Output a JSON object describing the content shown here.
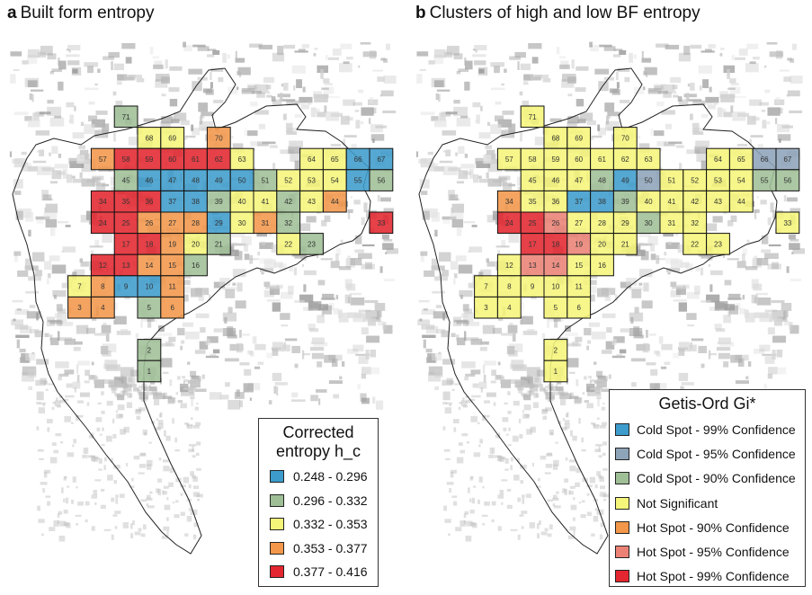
{
  "panels": [
    {
      "letter": "a",
      "title": "Built form entropy"
    },
    {
      "letter": "b",
      "title": "Clusters of high and low BF entropy"
    }
  ],
  "legend_a": {
    "title_line1": "Corrected",
    "title_line2": "entropy h_c",
    "items": [
      {
        "label": "0.248 - 0.296",
        "color": "#3d9ccc"
      },
      {
        "label": "0.296 - 0.332",
        "color": "#9fbf96"
      },
      {
        "label": "0.332 - 0.353",
        "color": "#f5f57a"
      },
      {
        "label": "0.353 - 0.377",
        "color": "#f3974a"
      },
      {
        "label": "0.377 - 0.416",
        "color": "#e3262f"
      }
    ]
  },
  "legend_b": {
    "title": "Getis-Ord Gi*",
    "items": [
      {
        "label": "Cold Spot - 99% Confidence",
        "color": "#3d9ccc"
      },
      {
        "label": "Cold Spot - 95% Confidence",
        "color": "#8ea4b9"
      },
      {
        "label": "Cold Spot - 90% Confidence",
        "color": "#9fbf96"
      },
      {
        "label": "Not Significant",
        "color": "#f5f57a"
      },
      {
        "label": "Hot Spot - 90% Confidence",
        "color": "#f3974a"
      },
      {
        "label": "Hot Spot - 95% Confidence",
        "color": "#eb8275"
      },
      {
        "label": "Hot Spot - 99% Confidence",
        "color": "#e3262f"
      }
    ]
  },
  "grid_cells": [
    {
      "id": "71",
      "a": "G",
      "b": "Y"
    },
    {
      "id": "68",
      "a": "Y",
      "b": "Y"
    },
    {
      "id": "69",
      "a": "Y",
      "b": "Y"
    },
    {
      "id": "70",
      "a": "O",
      "b": "Y"
    },
    {
      "id": "57",
      "a": "O",
      "b": "Y"
    },
    {
      "id": "58",
      "a": "R",
      "b": "Y"
    },
    {
      "id": "59",
      "a": "R",
      "b": "Y"
    },
    {
      "id": "60",
      "a": "R",
      "b": "Y"
    },
    {
      "id": "61",
      "a": "R",
      "b": "Y"
    },
    {
      "id": "62",
      "a": "R",
      "b": "Y"
    },
    {
      "id": "63",
      "a": "Y",
      "b": "Y"
    },
    {
      "id": "64",
      "a": "Y",
      "b": "Y"
    },
    {
      "id": "65",
      "a": "Y",
      "b": "Y"
    },
    {
      "id": "66",
      "a": "B",
      "b": "S"
    },
    {
      "id": "67",
      "a": "B",
      "b": "S"
    },
    {
      "id": "45",
      "a": "G",
      "b": "Y"
    },
    {
      "id": "46",
      "a": "B",
      "b": "Y"
    },
    {
      "id": "47",
      "a": "B",
      "b": "Y"
    },
    {
      "id": "48",
      "a": "B",
      "b": "G"
    },
    {
      "id": "49",
      "a": "B",
      "b": "B"
    },
    {
      "id": "50",
      "a": "B",
      "b": "S"
    },
    {
      "id": "51",
      "a": "G",
      "b": "Y"
    },
    {
      "id": "52",
      "a": "Y",
      "b": "Y"
    },
    {
      "id": "53",
      "a": "Y",
      "b": "Y"
    },
    {
      "id": "54",
      "a": "Y",
      "b": "Y"
    },
    {
      "id": "55",
      "a": "B",
      "b": "G"
    },
    {
      "id": "56",
      "a": "G",
      "b": "G"
    },
    {
      "id": "34",
      "a": "R",
      "b": "O"
    },
    {
      "id": "35",
      "a": "R",
      "b": "Y"
    },
    {
      "id": "36",
      "a": "R",
      "b": "Y"
    },
    {
      "id": "37",
      "a": "B",
      "b": "B"
    },
    {
      "id": "38",
      "a": "B",
      "b": "B"
    },
    {
      "id": "39",
      "a": "G",
      "b": "G"
    },
    {
      "id": "40",
      "a": "Y",
      "b": "Y"
    },
    {
      "id": "41",
      "a": "Y",
      "b": "Y"
    },
    {
      "id": "42",
      "a": "G",
      "b": "Y"
    },
    {
      "id": "43",
      "a": "Y",
      "b": "Y"
    },
    {
      "id": "44",
      "a": "O",
      "b": "Y"
    },
    {
      "id": "24",
      "a": "R",
      "b": "R"
    },
    {
      "id": "25",
      "a": "R",
      "b": "R"
    },
    {
      "id": "26",
      "a": "O",
      "b": "P"
    },
    {
      "id": "27",
      "a": "O",
      "b": "Y"
    },
    {
      "id": "28",
      "a": "O",
      "b": "Y"
    },
    {
      "id": "29",
      "a": "B",
      "b": "Y"
    },
    {
      "id": "30",
      "a": "Y",
      "b": "G"
    },
    {
      "id": "31",
      "a": "O",
      "b": "Y"
    },
    {
      "id": "32",
      "a": "G",
      "b": "Y"
    },
    {
      "id": "33",
      "a": "R",
      "b": "Y"
    },
    {
      "id": "17",
      "a": "R",
      "b": "R"
    },
    {
      "id": "18",
      "a": "R",
      "b": "R"
    },
    {
      "id": "19",
      "a": "O",
      "b": "P"
    },
    {
      "id": "20",
      "a": "Y",
      "b": "Y"
    },
    {
      "id": "21",
      "a": "G",
      "b": "Y"
    },
    {
      "id": "22",
      "a": "Y",
      "b": "Y"
    },
    {
      "id": "23",
      "a": "G",
      "b": "Y"
    },
    {
      "id": "12",
      "a": "R",
      "b": "Y"
    },
    {
      "id": "13",
      "a": "R",
      "b": "P"
    },
    {
      "id": "14",
      "a": "O",
      "b": "P"
    },
    {
      "id": "15",
      "a": "O",
      "b": "Y"
    },
    {
      "id": "16",
      "a": "G",
      "b": "Y"
    },
    {
      "id": "7",
      "a": "Y",
      "b": "Y"
    },
    {
      "id": "8",
      "a": "O",
      "b": "Y"
    },
    {
      "id": "9",
      "a": "B",
      "b": "Y"
    },
    {
      "id": "10",
      "a": "B",
      "b": "Y"
    },
    {
      "id": "11",
      "a": "O",
      "b": "Y"
    },
    {
      "id": "3",
      "a": "O",
      "b": "Y"
    },
    {
      "id": "4",
      "a": "O",
      "b": "Y"
    },
    {
      "id": "5",
      "a": "G",
      "b": "Y"
    },
    {
      "id": "6",
      "a": "O",
      "b": "Y"
    },
    {
      "id": "2",
      "a": "G",
      "b": "Y"
    },
    {
      "id": "1",
      "a": "G",
      "b": "Y"
    }
  ]
}
